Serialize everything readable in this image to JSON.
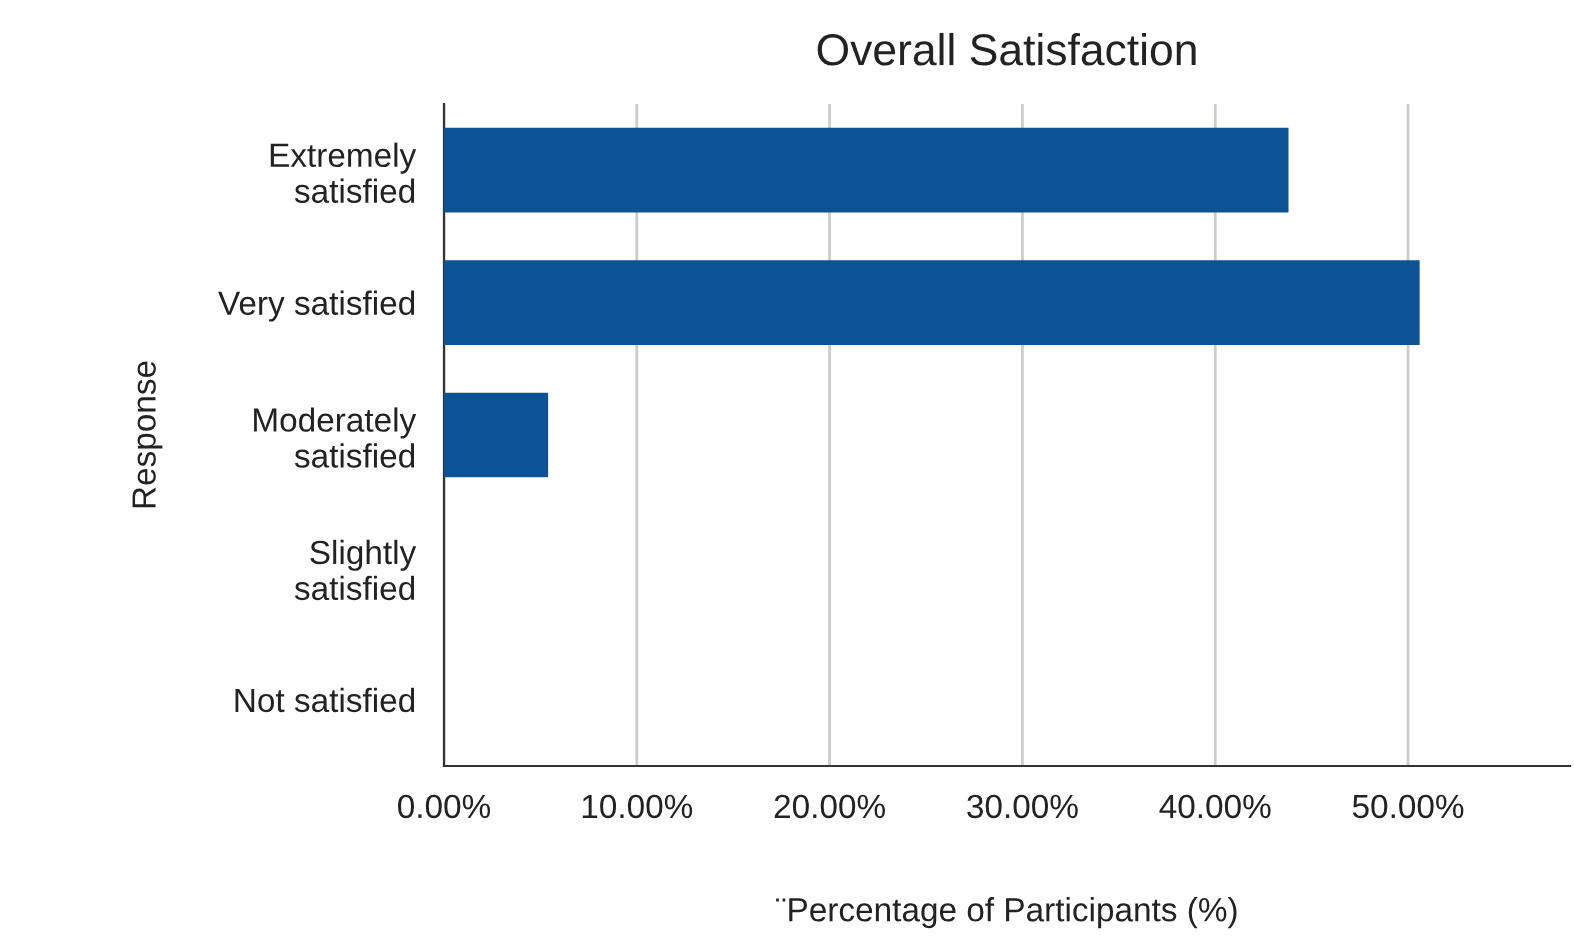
{
  "chart_data": {
    "type": "bar",
    "orientation": "horizontal",
    "title": "Overall Satisfaction",
    "xlabel": "¨Percentage of Participants (%)",
    "ylabel": "Response",
    "categories": [
      "Extremely\nsatisfied",
      "Very satisfied",
      "Moderately\nsatisfied",
      "Slightly\nsatisfied",
      "Not satisfied"
    ],
    "values": [
      43.8,
      50.6,
      5.4,
      0,
      0
    ],
    "color": "#0d5294",
    "xlim": [
      0,
      58.4
    ],
    "xticks": [
      {
        "value": 0,
        "label": "0.00%"
      },
      {
        "value": 10,
        "label": "10.00%"
      },
      {
        "value": 20,
        "label": "20.00%"
      },
      {
        "value": 30,
        "label": "30.00%"
      },
      {
        "value": 40,
        "label": "40.00%"
      },
      {
        "value": 50,
        "label": "50.00%"
      }
    ],
    "grid": "x",
    "legend": false
  }
}
